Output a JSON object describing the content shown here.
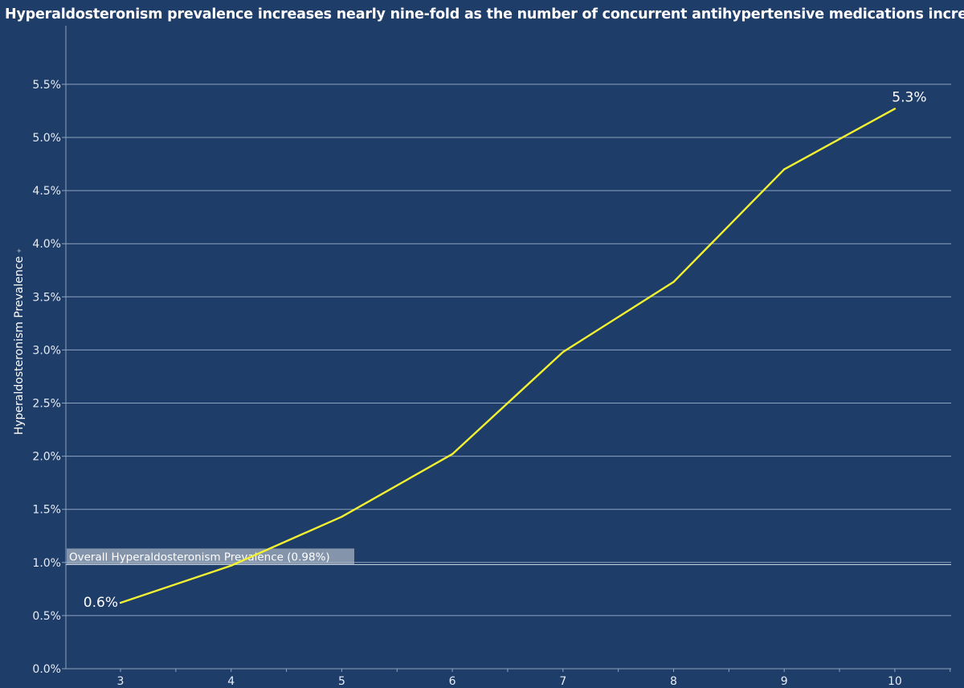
{
  "chart_data": {
    "type": "line",
    "title": "Hyperaldosteronism prevalence increases nearly nine-fold as the number of concurrent antihypertensive medications increases.",
    "xlabel": "",
    "ylabel": "Hyperaldosteronism Prevalence",
    "x": [
      3,
      4,
      5,
      6,
      7,
      8,
      9,
      10
    ],
    "y_ticks": [
      "0.0%",
      "0.5%",
      "1.0%",
      "1.5%",
      "2.0%",
      "2.5%",
      "3.0%",
      "3.5%",
      "4.0%",
      "4.5%",
      "5.0%",
      "5.5%"
    ],
    "x_ticks": [
      "3",
      "4",
      "5",
      "6",
      "7",
      "8",
      "9",
      "10"
    ],
    "ylim": [
      0,
      5.9
    ],
    "y_unit": "%",
    "grid": true,
    "series": [
      {
        "values": [
          0.62,
          0.97,
          1.43,
          2.02,
          2.98,
          3.64,
          4.7,
          5.27
        ],
        "color": "#f2f230"
      }
    ],
    "annotations": {
      "start_label": "0.6%",
      "end_label": "5.3%"
    },
    "reference_line": {
      "value": 0.98,
      "label": "Overall Hyperaldosteronism Prevalence (0.98%)"
    },
    "colors": {
      "background": "#1f3d69",
      "grid": "#8ea3c0",
      "line": "#f2f230",
      "text": "#ffffff"
    }
  }
}
